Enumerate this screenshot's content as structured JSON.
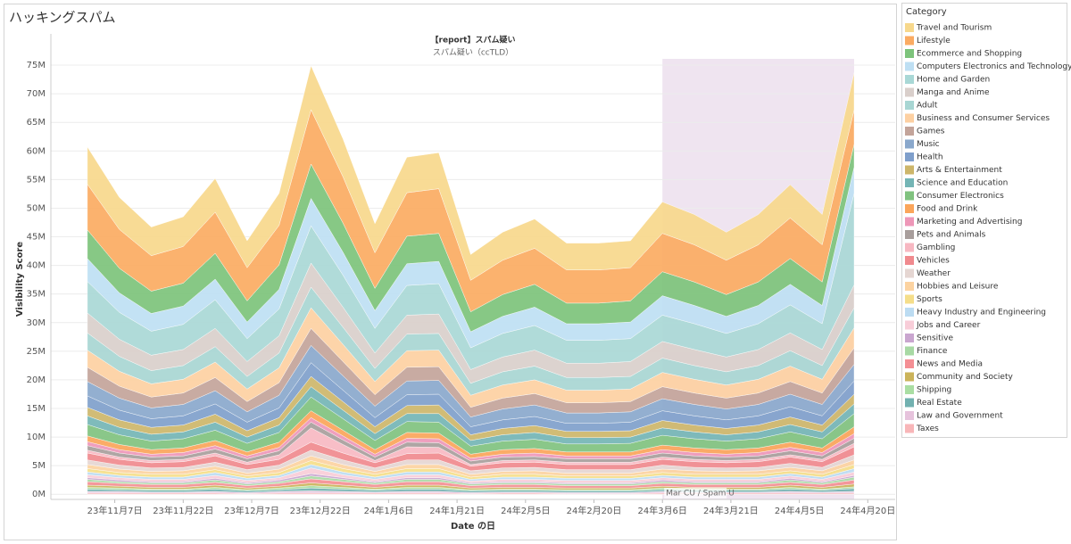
{
  "chart_data": {
    "type": "area",
    "stacked": true,
    "title": "ハッキングスパム",
    "header": "【report】スパム疑い",
    "subtitle": "スパム疑い（ccTLD）",
    "y_label": "Visibility Score",
    "x_label": "Date の日",
    "legend_title": "Category",
    "legend": "right",
    "grid": true,
    "highlight": {
      "label": "Mar CU / Spam U",
      "start": "2024-03-06",
      "end": "2024-04-17",
      "color": "#efe4f0"
    },
    "x": [
      "2023-11-01",
      "2023-11-08",
      "2023-11-15",
      "2023-11-22",
      "2023-11-29",
      "2023-12-06",
      "2023-12-13",
      "2023-12-20",
      "2023-12-27",
      "2024-01-03",
      "2024-01-10",
      "2024-01-17",
      "2024-01-24",
      "2024-01-31",
      "2024-02-07",
      "2024-02-14",
      "2024-02-21",
      "2024-02-28",
      "2024-03-06",
      "2024-03-13",
      "2024-03-20",
      "2024-03-27",
      "2024-04-03",
      "2024-04-10",
      "2024-04-17"
    ],
    "xlim": [
      "2023-10-24",
      "2024-04-26"
    ],
    "xticks": [
      {
        "value": "2023-11-07",
        "label": "23年11月7日"
      },
      {
        "value": "2023-11-22",
        "label": "23年11月22日"
      },
      {
        "value": "2023-12-07",
        "label": "23年12月7日"
      },
      {
        "value": "2023-12-22",
        "label": "23年12月22日"
      },
      {
        "value": "2024-01-06",
        "label": "24年1月6日"
      },
      {
        "value": "2024-01-21",
        "label": "24年1月21日"
      },
      {
        "value": "2024-02-05",
        "label": "24年2月5日"
      },
      {
        "value": "2024-02-20",
        "label": "24年2月20日"
      },
      {
        "value": "2024-03-06",
        "label": "24年3月6日"
      },
      {
        "value": "2024-03-21",
        "label": "24年3月21日"
      },
      {
        "value": "2024-04-05",
        "label": "24年4月5日"
      },
      {
        "value": "2024-04-20",
        "label": "24年4月20日"
      }
    ],
    "ylim": [
      -0.9,
      76.1
    ],
    "yticks": [
      {
        "value": 0,
        "label": "0M"
      },
      {
        "value": 5,
        "label": "5M"
      },
      {
        "value": 10,
        "label": "10M"
      },
      {
        "value": 15,
        "label": "15M"
      },
      {
        "value": 20,
        "label": "20M"
      },
      {
        "value": 25,
        "label": "25M"
      },
      {
        "value": 30,
        "label": "30M"
      },
      {
        "value": 35,
        "label": "35M"
      },
      {
        "value": 40,
        "label": "40M"
      },
      {
        "value": 45,
        "label": "45M"
      },
      {
        "value": 50,
        "label": "50M"
      },
      {
        "value": 55,
        "label": "55M"
      },
      {
        "value": 60,
        "label": "60M"
      },
      {
        "value": 65,
        "label": "65M"
      },
      {
        "value": 70,
        "label": "70M"
      },
      {
        "value": 75,
        "label": "75M"
      }
    ],
    "series": [
      {
        "name": "Travel and Tourism",
        "color": "#f7d88c",
        "values": [
          6.5,
          5.6,
          5.0,
          5.2,
          5.9,
          4.7,
          5.6,
          7.7,
          6.6,
          5.1,
          6.2,
          6.3,
          4.5,
          4.9,
          5.1,
          4.7,
          4.7,
          4.7,
          5.5,
          5.3,
          4.9,
          5.3,
          5.8,
          5.3,
          6.5
        ]
      },
      {
        "name": "Lifestyle",
        "color": "#fbab62",
        "values": [
          8.0,
          6.8,
          6.2,
          6.4,
          7.2,
          5.8,
          6.9,
          9.5,
          8.1,
          6.2,
          7.6,
          7.8,
          5.5,
          6.0,
          6.3,
          5.8,
          5.8,
          5.8,
          6.7,
          6.5,
          6.0,
          6.5,
          7.1,
          6.5,
          6.0
        ]
      },
      {
        "name": "Ecommerce and Shopping",
        "color": "#7dc37b",
        "values": [
          5.0,
          4.3,
          3.9,
          4.0,
          4.5,
          3.7,
          4.3,
          6.0,
          5.1,
          3.9,
          4.8,
          4.9,
          3.5,
          3.8,
          4.0,
          3.6,
          3.6,
          3.7,
          4.2,
          4.1,
          3.8,
          4.1,
          4.5,
          4.1,
          4.0
        ]
      },
      {
        "name": "Computers Electronics and Technology",
        "color": "#bedff3",
        "values": [
          4.0,
          3.4,
          3.1,
          3.2,
          3.6,
          2.9,
          3.4,
          4.8,
          4.0,
          3.1,
          3.8,
          3.9,
          2.8,
          3.0,
          3.2,
          2.9,
          2.9,
          2.9,
          3.4,
          3.2,
          3.0,
          3.2,
          3.6,
          3.2,
          4.6
        ]
      },
      {
        "name": "Home and Garden",
        "color": "#a9d8d6",
        "values": [
          5.5,
          4.7,
          4.2,
          4.4,
          5.0,
          4.0,
          4.7,
          6.5,
          5.6,
          4.3,
          5.2,
          5.3,
          3.8,
          4.1,
          4.3,
          4.0,
          4.0,
          4.0,
          4.6,
          4.5,
          4.1,
          4.5,
          4.9,
          4.5,
          16.0
        ]
      },
      {
        "name": "Manga and Anime",
        "color": "#d9cfcb",
        "values": [
          3.5,
          3.0,
          2.7,
          2.8,
          3.2,
          2.6,
          3.0,
          4.2,
          3.5,
          2.7,
          3.3,
          3.4,
          2.4,
          2.6,
          2.8,
          2.5,
          2.5,
          2.6,
          2.9,
          2.8,
          2.6,
          2.8,
          3.1,
          2.8,
          4.0
        ]
      },
      {
        "name": "Adult",
        "color": "#a8d6d3",
        "values": [
          3.0,
          2.6,
          2.3,
          2.4,
          2.7,
          2.2,
          2.6,
          3.6,
          3.0,
          2.3,
          2.9,
          2.9,
          2.1,
          2.3,
          2.4,
          2.2,
          2.2,
          2.2,
          2.5,
          2.4,
          2.3,
          2.4,
          2.7,
          2.4,
          3.5
        ]
      },
      {
        "name": "Business and Consumer Services",
        "color": "#fdd0a2",
        "values": [
          3.0,
          2.6,
          2.3,
          2.4,
          2.7,
          2.2,
          2.6,
          3.6,
          3.0,
          2.3,
          2.9,
          2.9,
          2.1,
          2.3,
          2.4,
          2.2,
          2.2,
          2.2,
          2.5,
          2.4,
          2.3,
          2.4,
          2.7,
          2.4,
          3.5
        ]
      },
      {
        "name": "Games",
        "color": "#c3a49a",
        "values": [
          2.5,
          2.1,
          1.9,
          2.0,
          2.3,
          1.8,
          2.2,
          3.0,
          2.5,
          2.0,
          2.4,
          2.4,
          1.7,
          1.9,
          2.0,
          1.8,
          1.8,
          1.8,
          2.1,
          2.0,
          1.9,
          2.0,
          2.2,
          2.0,
          2.9
        ]
      },
      {
        "name": "Music",
        "color": "#8aa8cc",
        "values": [
          2.5,
          2.1,
          1.9,
          2.0,
          2.3,
          1.8,
          2.2,
          3.0,
          2.5,
          2.0,
          2.4,
          2.4,
          1.7,
          1.9,
          2.0,
          1.8,
          1.8,
          1.8,
          2.1,
          2.0,
          1.9,
          2.0,
          2.2,
          2.0,
          2.9
        ]
      },
      {
        "name": "Health",
        "color": "#7f9fcb",
        "values": [
          2.0,
          1.7,
          1.5,
          1.6,
          1.8,
          1.5,
          1.7,
          2.4,
          2.0,
          1.6,
          1.9,
          1.9,
          1.4,
          1.5,
          1.6,
          1.4,
          1.4,
          1.5,
          1.7,
          1.6,
          1.5,
          1.6,
          1.8,
          1.6,
          2.3
        ]
      },
      {
        "name": "Arts & Entertainment",
        "color": "#cdb66a",
        "values": [
          1.5,
          1.3,
          1.2,
          1.2,
          1.4,
          1.1,
          1.3,
          1.8,
          1.5,
          1.2,
          1.4,
          1.5,
          1.0,
          1.1,
          1.2,
          1.1,
          1.1,
          1.1,
          1.3,
          1.2,
          1.1,
          1.2,
          1.3,
          1.2,
          1.7
        ]
      },
      {
        "name": "Science and Education",
        "color": "#74b5b5",
        "values": [
          1.5,
          1.3,
          1.2,
          1.2,
          1.4,
          1.1,
          1.3,
          1.8,
          1.5,
          1.2,
          1.4,
          1.5,
          1.0,
          1.1,
          1.2,
          1.1,
          1.1,
          1.1,
          1.3,
          1.2,
          1.1,
          1.2,
          1.3,
          1.2,
          1.7
        ]
      },
      {
        "name": "Consumer Electronics",
        "color": "#80c27f",
        "values": [
          2.0,
          1.7,
          1.5,
          1.6,
          1.8,
          1.5,
          1.7,
          2.4,
          2.0,
          1.6,
          1.9,
          1.9,
          1.4,
          1.5,
          1.6,
          1.4,
          1.4,
          1.5,
          1.7,
          1.6,
          1.5,
          1.6,
          1.8,
          1.6,
          2.3
        ]
      },
      {
        "name": "Food and Drink",
        "color": "#fba55a",
        "values": [
          1.0,
          0.9,
          0.8,
          0.8,
          0.9,
          0.7,
          0.9,
          1.2,
          1.0,
          0.8,
          1.0,
          1.0,
          0.7,
          0.8,
          0.8,
          0.7,
          0.7,
          0.7,
          0.8,
          0.8,
          0.8,
          0.8,
          0.9,
          0.8,
          1.2
        ]
      },
      {
        "name": "Marketing and Advertising",
        "color": "#ee97b8",
        "values": [
          0.7,
          0.6,
          0.5,
          0.6,
          0.6,
          0.5,
          0.6,
          0.8,
          0.7,
          0.5,
          0.7,
          0.7,
          0.5,
          0.5,
          0.6,
          0.5,
          0.5,
          0.5,
          0.6,
          0.6,
          0.5,
          0.6,
          0.6,
          0.6,
          0.8
        ]
      },
      {
        "name": "Pets and Animals",
        "color": "#a89e9c",
        "values": [
          0.8,
          0.7,
          0.6,
          0.6,
          0.7,
          0.6,
          0.7,
          1.0,
          0.8,
          0.6,
          0.8,
          0.8,
          0.6,
          0.6,
          0.6,
          0.6,
          0.6,
          0.6,
          0.7,
          0.6,
          0.6,
          0.6,
          0.7,
          0.6,
          0.9
        ]
      },
      {
        "name": "Gambling",
        "color": "#f7b8c2",
        "values": [
          0.5,
          0.4,
          0.4,
          0.4,
          0.5,
          0.4,
          0.8,
          2.5,
          1.5,
          0.4,
          1.2,
          1.0,
          0.3,
          0.4,
          0.4,
          0.4,
          0.4,
          0.4,
          0.4,
          0.4,
          0.4,
          0.4,
          0.4,
          0.4,
          0.6
        ]
      },
      {
        "name": "Vehicles",
        "color": "#f08a8e",
        "values": [
          1.2,
          1.0,
          0.9,
          1.0,
          1.1,
          0.9,
          1.0,
          1.4,
          1.2,
          0.9,
          1.1,
          1.2,
          0.8,
          0.9,
          0.9,
          0.9,
          0.9,
          0.9,
          1.0,
          1.0,
          0.9,
          1.0,
          1.1,
          1.0,
          1.4
        ]
      },
      {
        "name": "Weather",
        "color": "#e5d6d2",
        "values": [
          0.8,
          0.7,
          0.6,
          0.6,
          0.7,
          0.6,
          0.7,
          1.0,
          0.8,
          0.6,
          0.8,
          0.8,
          0.6,
          0.6,
          0.6,
          0.6,
          0.6,
          0.6,
          0.7,
          0.6,
          0.6,
          0.6,
          0.7,
          0.6,
          0.9
        ]
      },
      {
        "name": "Hobbies and Leisure",
        "color": "#fcd3a1",
        "values": [
          0.7,
          0.6,
          0.5,
          0.6,
          0.6,
          0.5,
          0.6,
          0.8,
          0.7,
          0.5,
          0.7,
          0.7,
          0.5,
          0.5,
          0.6,
          0.5,
          0.5,
          0.5,
          0.6,
          0.6,
          0.5,
          0.6,
          0.6,
          0.6,
          0.8
        ]
      },
      {
        "name": "Sports",
        "color": "#f5de8a",
        "values": [
          0.6,
          0.5,
          0.5,
          0.5,
          0.5,
          0.4,
          0.5,
          0.7,
          0.6,
          0.5,
          0.6,
          0.6,
          0.4,
          0.5,
          0.5,
          0.4,
          0.4,
          0.4,
          0.5,
          0.5,
          0.5,
          0.5,
          0.5,
          0.5,
          0.7
        ]
      },
      {
        "name": "Heavy Industry and Engineering",
        "color": "#bcdcf2",
        "values": [
          0.5,
          0.4,
          0.4,
          0.4,
          0.5,
          0.4,
          0.4,
          0.6,
          0.5,
          0.4,
          0.5,
          0.5,
          0.3,
          0.4,
          0.4,
          0.4,
          0.4,
          0.4,
          0.4,
          0.4,
          0.4,
          0.4,
          0.4,
          0.4,
          0.6
        ]
      },
      {
        "name": "Jobs and Career",
        "color": "#f8cdd8",
        "values": [
          0.5,
          0.4,
          0.4,
          0.4,
          0.5,
          0.4,
          0.4,
          1.0,
          0.5,
          0.4,
          0.5,
          0.5,
          0.3,
          0.4,
          0.4,
          0.4,
          0.4,
          0.4,
          0.4,
          0.4,
          0.4,
          0.4,
          0.4,
          0.4,
          0.6
        ]
      },
      {
        "name": "Sensitive",
        "color": "#c9a6cf",
        "values": [
          0.3,
          0.3,
          0.2,
          0.2,
          0.3,
          0.2,
          0.3,
          0.4,
          0.3,
          0.2,
          0.3,
          0.3,
          0.2,
          0.2,
          0.2,
          0.2,
          0.2,
          0.2,
          0.3,
          0.2,
          0.2,
          0.2,
          0.3,
          0.2,
          0.3
        ]
      },
      {
        "name": "Finance",
        "color": "#a8d9a4",
        "values": [
          0.4,
          0.3,
          0.3,
          0.3,
          0.4,
          0.3,
          0.3,
          0.5,
          0.4,
          0.3,
          0.4,
          0.4,
          0.3,
          0.3,
          0.3,
          0.3,
          0.3,
          0.3,
          0.3,
          0.3,
          0.3,
          0.3,
          0.4,
          0.3,
          0.5
        ]
      },
      {
        "name": "News and Media",
        "color": "#f48f94",
        "values": [
          0.6,
          0.5,
          0.5,
          0.5,
          0.5,
          0.4,
          0.5,
          0.7,
          0.6,
          0.5,
          0.6,
          0.6,
          0.4,
          0.5,
          0.5,
          0.4,
          0.4,
          0.4,
          0.5,
          0.5,
          0.5,
          0.5,
          0.5,
          0.5,
          0.7
        ]
      },
      {
        "name": "Community and Society",
        "color": "#cbb35a",
        "values": [
          0.4,
          0.3,
          0.3,
          0.3,
          0.4,
          0.3,
          0.3,
          0.5,
          0.4,
          0.3,
          0.4,
          0.4,
          0.3,
          0.3,
          0.3,
          0.3,
          0.3,
          0.3,
          0.3,
          0.3,
          0.3,
          0.3,
          0.4,
          0.3,
          0.5
        ]
      },
      {
        "name": "Shipping",
        "color": "#aadea3",
        "values": [
          0.3,
          0.3,
          0.2,
          0.2,
          0.3,
          0.2,
          0.3,
          0.4,
          0.3,
          0.2,
          0.3,
          0.3,
          0.2,
          0.2,
          0.2,
          0.2,
          0.2,
          0.2,
          0.3,
          0.2,
          0.2,
          0.2,
          0.3,
          0.2,
          0.3
        ]
      },
      {
        "name": "Real Estate",
        "color": "#72b1b0",
        "values": [
          0.4,
          0.3,
          0.3,
          0.3,
          0.4,
          0.3,
          0.3,
          0.5,
          0.4,
          0.3,
          0.4,
          0.4,
          0.3,
          0.3,
          0.3,
          0.3,
          0.3,
          0.3,
          0.3,
          0.3,
          0.3,
          0.3,
          0.4,
          0.3,
          0.5
        ]
      },
      {
        "name": "Law and Government",
        "color": "#e6c3dc",
        "values": [
          0.3,
          0.3,
          0.2,
          0.2,
          0.3,
          0.2,
          0.3,
          0.4,
          0.3,
          0.2,
          0.3,
          0.3,
          0.2,
          0.2,
          0.2,
          0.2,
          0.2,
          0.2,
          0.3,
          0.2,
          0.2,
          0.2,
          0.3,
          0.2,
          0.3
        ]
      },
      {
        "name": "Taxes",
        "color": "#f8b6b8",
        "values": [
          0.2,
          0.2,
          0.2,
          0.2,
          0.2,
          0.1,
          0.2,
          0.2,
          0.2,
          0.2,
          0.2,
          0.2,
          0.1,
          0.2,
          0.2,
          0.1,
          0.1,
          0.1,
          0.2,
          0.2,
          0.2,
          0.2,
          0.2,
          0.2,
          0.2
        ]
      }
    ]
  }
}
